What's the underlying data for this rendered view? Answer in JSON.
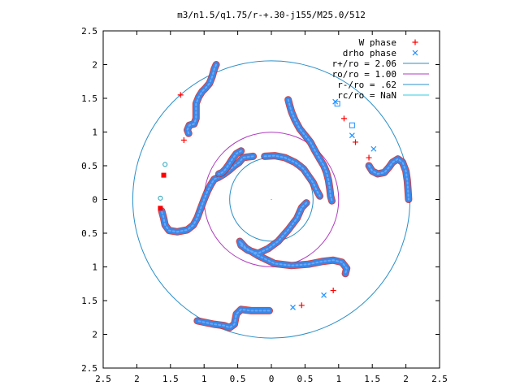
{
  "chart_data": {
    "type": "scatter",
    "title": "m3/n1.5/q1.75/r-+.30-j155/M25.0/512",
    "xlabel": "",
    "ylabel": "",
    "xlim": [
      -2.5,
      2.5
    ],
    "ylim": [
      -2.5,
      2.5
    ],
    "x_tick_labels": [
      "2.5",
      "2",
      "1.5",
      "1",
      "0.5",
      "0",
      "0.5",
      "1",
      "1.5",
      "2",
      "2.5"
    ],
    "y_tick_labels": [
      "2.5",
      "2",
      "1.5",
      "1",
      "0.5",
      "0",
      "0.5",
      "1",
      "1.5",
      "2",
      "2.5"
    ],
    "x_ticks": [
      -2.5,
      -2,
      -1.5,
      -1,
      -0.5,
      0,
      0.5,
      1,
      1.5,
      2,
      2.5
    ],
    "y_ticks": [
      2.5,
      2,
      1.5,
      1,
      0.5,
      0,
      -0.5,
      -1,
      -1.5,
      -2,
      -2.5
    ],
    "grid": false,
    "legend_position": "top-right",
    "colors": {
      "w_phase": "#ff0000",
      "drho_phase": "#1e90ff",
      "r_plus": "#2a8fc8",
      "ro": "#b03bc0",
      "r_minus": "#2a8fc8",
      "rc": "#2ecfe0",
      "ribbon": "#3a86e8",
      "ribbon_edge": "#cc2222"
    },
    "legend": [
      {
        "label": "W phase",
        "kind": "plus",
        "color": "#ff0000"
      },
      {
        "label": "drho phase",
        "kind": "cross",
        "color": "#1e90ff"
      },
      {
        "label": "r+/ro = 2.06",
        "kind": "line",
        "color": "#2a8fc8"
      },
      {
        "label": "ro/ro = 1.00",
        "kind": "line",
        "color": "#b03bc0"
      },
      {
        "label": "r-/ro = .62",
        "kind": "line",
        "color": "#2a8fc8"
      },
      {
        "label": "rc/ro = NaN",
        "kind": "line",
        "color": "#2ecfe0"
      }
    ],
    "circles": [
      {
        "name": "r+/ro",
        "radius": 2.06
      },
      {
        "name": "ro/ro",
        "radius": 1.0
      },
      {
        "name": "r-/ro",
        "radius": 0.62
      }
    ],
    "arms": [
      [
        [
          -0.27,
          0.64
        ],
        [
          -0.35,
          0.63
        ],
        [
          -0.42,
          0.62
        ],
        [
          -0.48,
          0.55
        ],
        [
          -0.55,
          0.5
        ],
        [
          -0.62,
          0.44
        ],
        [
          -0.7,
          0.38
        ],
        [
          -0.78,
          0.33
        ],
        [
          -0.85,
          0.3
        ],
        [
          -0.9,
          0.22
        ],
        [
          -0.95,
          0.12
        ],
        [
          -1.0,
          0.0
        ],
        [
          -1.05,
          -0.13
        ],
        [
          -1.1,
          -0.27
        ],
        [
          -1.16,
          -0.38
        ],
        [
          -1.25,
          -0.45
        ],
        [
          -1.4,
          -0.48
        ],
        [
          -1.52,
          -0.46
        ],
        [
          -1.58,
          -0.38
        ],
        [
          -1.6,
          -0.28
        ],
        [
          -1.63,
          -0.17
        ]
      ],
      [
        [
          0.52,
          -0.05
        ],
        [
          0.45,
          -0.12
        ],
        [
          0.38,
          -0.28
        ],
        [
          0.25,
          -0.45
        ],
        [
          0.1,
          -0.62
        ],
        [
          -0.05,
          -0.73
        ],
        [
          -0.2,
          -0.8
        ],
        [
          -0.35,
          -0.75
        ],
        [
          -0.45,
          -0.68
        ],
        [
          -0.47,
          -0.62
        ],
        [
          -0.38,
          -0.72
        ],
        [
          -0.2,
          -0.83
        ],
        [
          0.05,
          -0.95
        ],
        [
          0.3,
          -0.98
        ],
        [
          0.55,
          -0.96
        ],
        [
          0.75,
          -0.92
        ],
        [
          0.92,
          -0.9
        ],
        [
          1.05,
          -0.93
        ],
        [
          1.12,
          -1.02
        ],
        [
          1.1,
          -1.1
        ]
      ],
      [
        [
          -0.03,
          -1.65
        ],
        [
          -0.3,
          -1.65
        ],
        [
          -0.45,
          -1.63
        ],
        [
          -0.52,
          -1.7
        ],
        [
          -0.55,
          -1.85
        ],
        [
          -0.62,
          -1.9
        ],
        [
          -0.7,
          -1.87
        ],
        [
          -0.85,
          -1.85
        ],
        [
          -1.0,
          -1.82
        ],
        [
          -1.1,
          -1.8
        ]
      ],
      [
        [
          -0.45,
          0.72
        ],
        [
          -0.52,
          0.68
        ],
        [
          -0.58,
          0.6
        ],
        [
          -0.63,
          0.52
        ],
        [
          -0.68,
          0.45
        ],
        [
          -0.73,
          0.4
        ],
        [
          -0.78,
          0.38
        ]
      ],
      [
        [
          -1.23,
          0.98
        ],
        [
          -1.25,
          1.03
        ],
        [
          -1.22,
          1.1
        ],
        [
          -1.15,
          1.12
        ],
        [
          -1.12,
          1.2
        ],
        [
          -1.12,
          1.3
        ],
        [
          -1.12,
          1.42
        ],
        [
          -1.08,
          1.52
        ],
        [
          -1.03,
          1.6
        ],
        [
          -0.98,
          1.65
        ],
        [
          -0.92,
          1.72
        ],
        [
          -0.88,
          1.82
        ],
        [
          -0.85,
          1.93
        ],
        [
          -0.82,
          2.0
        ]
      ],
      [
        [
          -0.1,
          0.64
        ],
        [
          0.05,
          0.65
        ],
        [
          0.2,
          0.62
        ],
        [
          0.35,
          0.55
        ],
        [
          0.42,
          0.5
        ],
        [
          0.48,
          0.45
        ],
        [
          0.55,
          0.35
        ],
        [
          0.62,
          0.25
        ],
        [
          0.68,
          0.12
        ],
        [
          0.72,
          0.05
        ]
      ],
      [
        [
          0.25,
          1.48
        ],
        [
          0.27,
          1.4
        ],
        [
          0.3,
          1.3
        ],
        [
          0.35,
          1.18
        ],
        [
          0.42,
          1.05
        ],
        [
          0.5,
          0.95
        ],
        [
          0.58,
          0.85
        ],
        [
          0.65,
          0.72
        ],
        [
          0.72,
          0.6
        ],
        [
          0.78,
          0.5
        ],
        [
          0.82,
          0.4
        ],
        [
          0.85,
          0.28
        ],
        [
          0.87,
          0.15
        ],
        [
          0.88,
          0.05
        ],
        [
          0.9,
          -0.02
        ]
      ],
      [
        [
          1.45,
          0.5
        ],
        [
          1.5,
          0.42
        ],
        [
          1.58,
          0.38
        ],
        [
          1.68,
          0.4
        ],
        [
          1.75,
          0.48
        ],
        [
          1.8,
          0.55
        ],
        [
          1.88,
          0.6
        ],
        [
          1.95,
          0.55
        ],
        [
          2.0,
          0.42
        ],
        [
          2.02,
          0.28
        ],
        [
          2.03,
          0.15
        ],
        [
          2.04,
          0.0
        ]
      ]
    ],
    "w_phase_points": [
      [
        0.45,
        -1.57
      ],
      [
        0.92,
        -1.35
      ],
      [
        1.08,
        1.2
      ],
      [
        1.45,
        0.62
      ],
      [
        1.25,
        0.85
      ],
      [
        -1.3,
        0.88
      ],
      [
        -1.35,
        1.55
      ]
    ],
    "drho_phase_points": [
      [
        0.32,
        -1.6
      ],
      [
        0.78,
        -1.42
      ],
      [
        1.2,
        0.95
      ],
      [
        1.52,
        0.75
      ],
      [
        0.95,
        1.45
      ]
    ],
    "square_markers": [
      {
        "x": -1.6,
        "y": 0.36,
        "color": "#ff0000"
      },
      {
        "x": -1.65,
        "y": -0.13,
        "color": "#ff0000"
      },
      {
        "x": 1.2,
        "y": 1.1,
        "color": "#1e90ff"
      },
      {
        "x": 0.98,
        "y": 1.42,
        "color": "#1e90ff"
      }
    ],
    "ring_markers": [
      {
        "x": -1.58,
        "y": 0.52
      },
      {
        "x": -1.65,
        "y": 0.02
      }
    ]
  }
}
